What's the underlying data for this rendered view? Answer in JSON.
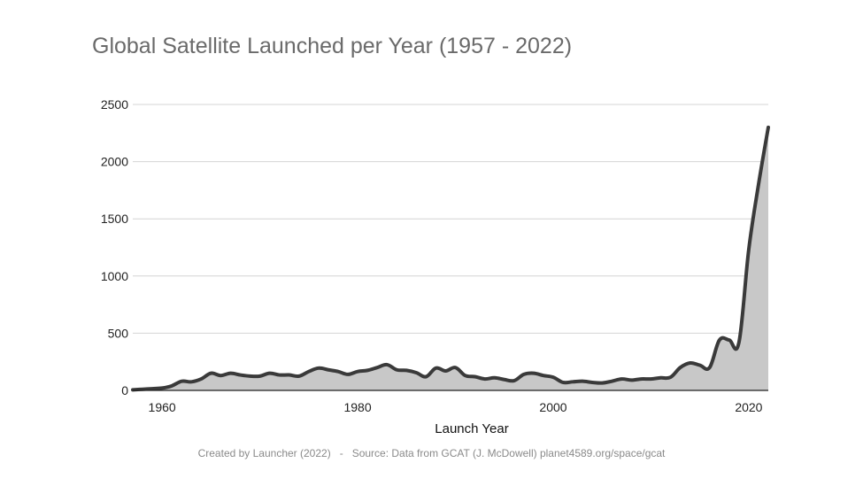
{
  "chart_data": {
    "type": "area",
    "title": "Global Satellite Launched per Year (1957 - 2022)",
    "xlabel": "Launch Year",
    "ylabel": "",
    "xlim": [
      1957,
      2022
    ],
    "ylim": [
      0,
      2500
    ],
    "x_ticks": [
      1960,
      1980,
      2000,
      2020
    ],
    "y_ticks": [
      0,
      500,
      1000,
      1500,
      2000,
      2500
    ],
    "grid": "horizontal",
    "legend": "none",
    "colors": {
      "line": "#3a3a3a",
      "fill": "#c8c8c8",
      "grid": "#d4d4d4"
    },
    "series": [
      {
        "x": [
          1957,
          1958,
          1959,
          1960,
          1961,
          1962,
          1963,
          1964,
          1965,
          1966,
          1967,
          1968,
          1969,
          1970,
          1971,
          1972,
          1973,
          1974,
          1975,
          1976,
          1977,
          1978,
          1979,
          1980,
          1981,
          1982,
          1983,
          1984,
          1985,
          1986,
          1987,
          1988,
          1989,
          1990,
          1991,
          1992,
          1993,
          1994,
          1995,
          1996,
          1997,
          1998,
          1999,
          2000,
          2001,
          2002,
          2003,
          2004,
          2005,
          2006,
          2007,
          2008,
          2009,
          2010,
          2011,
          2012,
          2013,
          2014,
          2015,
          2016,
          2017,
          2018,
          2019,
          2020,
          2021,
          2022
        ],
        "values": [
          5,
          10,
          15,
          20,
          40,
          80,
          75,
          100,
          150,
          130,
          150,
          135,
          125,
          125,
          150,
          135,
          135,
          125,
          165,
          195,
          180,
          165,
          140,
          165,
          175,
          200,
          225,
          180,
          175,
          155,
          120,
          195,
          170,
          200,
          130,
          120,
          100,
          110,
          95,
          85,
          140,
          150,
          130,
          115,
          70,
          75,
          80,
          70,
          65,
          80,
          100,
          90,
          100,
          100,
          110,
          115,
          200,
          240,
          220,
          200,
          440,
          440,
          420,
          1230,
          1800,
          2300
        ]
      }
    ]
  },
  "footer": {
    "credit": "Created by Launcher (2022)   -   Source: Data from GCAT (J. McDowell) planet4589.org/space/gcat"
  }
}
